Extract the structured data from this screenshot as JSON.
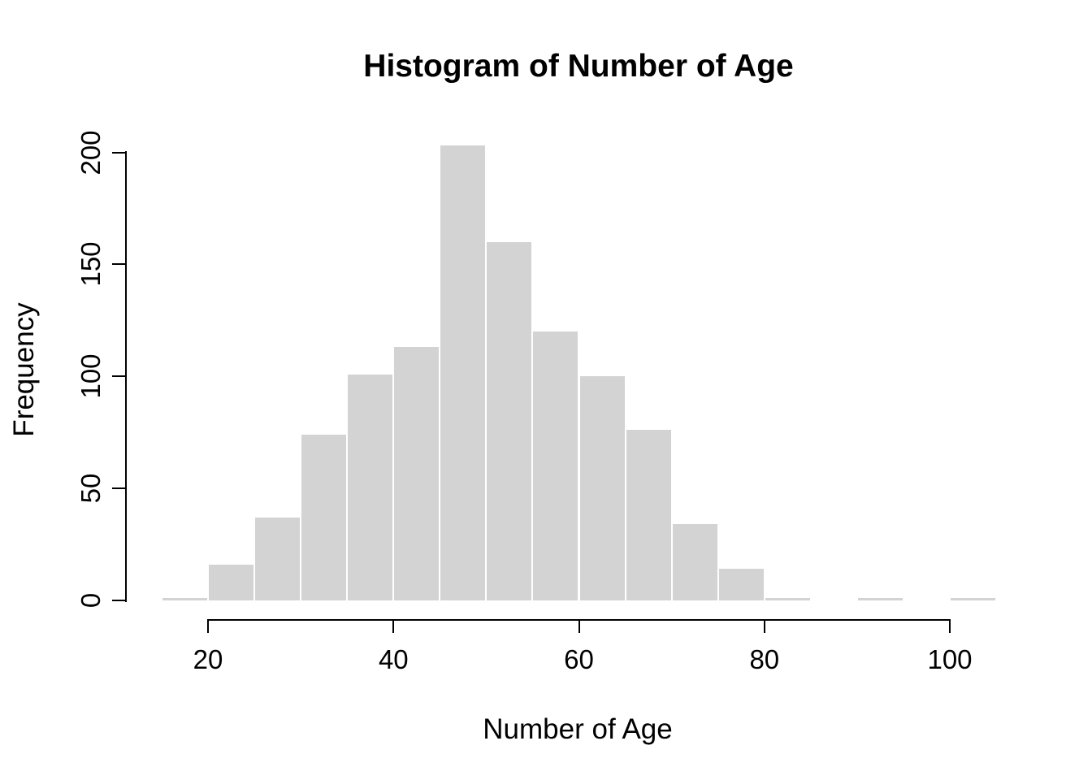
{
  "page": {
    "background_color": "#ffffff",
    "text_color": "#000000"
  },
  "chart_data": {
    "type": "bar",
    "subtype": "histogram",
    "title": "Histogram of Number of Age",
    "xlabel": "Number of Age",
    "ylabel": "Frequency",
    "bin_width": 5,
    "bin_starts": [
      15,
      20,
      25,
      30,
      35,
      40,
      45,
      50,
      55,
      60,
      65,
      70,
      75,
      80,
      85,
      90,
      95,
      100
    ],
    "counts": [
      1,
      16,
      37,
      74,
      101,
      113,
      203,
      160,
      120,
      100,
      76,
      34,
      14,
      1,
      0,
      1,
      0,
      1
    ],
    "x_ticks": [
      20,
      40,
      60,
      80,
      100
    ],
    "y_ticks": [
      0,
      50,
      100,
      150,
      200
    ],
    "xlim": [
      15,
      105
    ],
    "ylim": [
      0,
      200
    ],
    "grid": false,
    "legend": null,
    "bar_color": "#d3d3d3",
    "bar_border_color": "#ffffff",
    "axis_color": "#000000"
  }
}
